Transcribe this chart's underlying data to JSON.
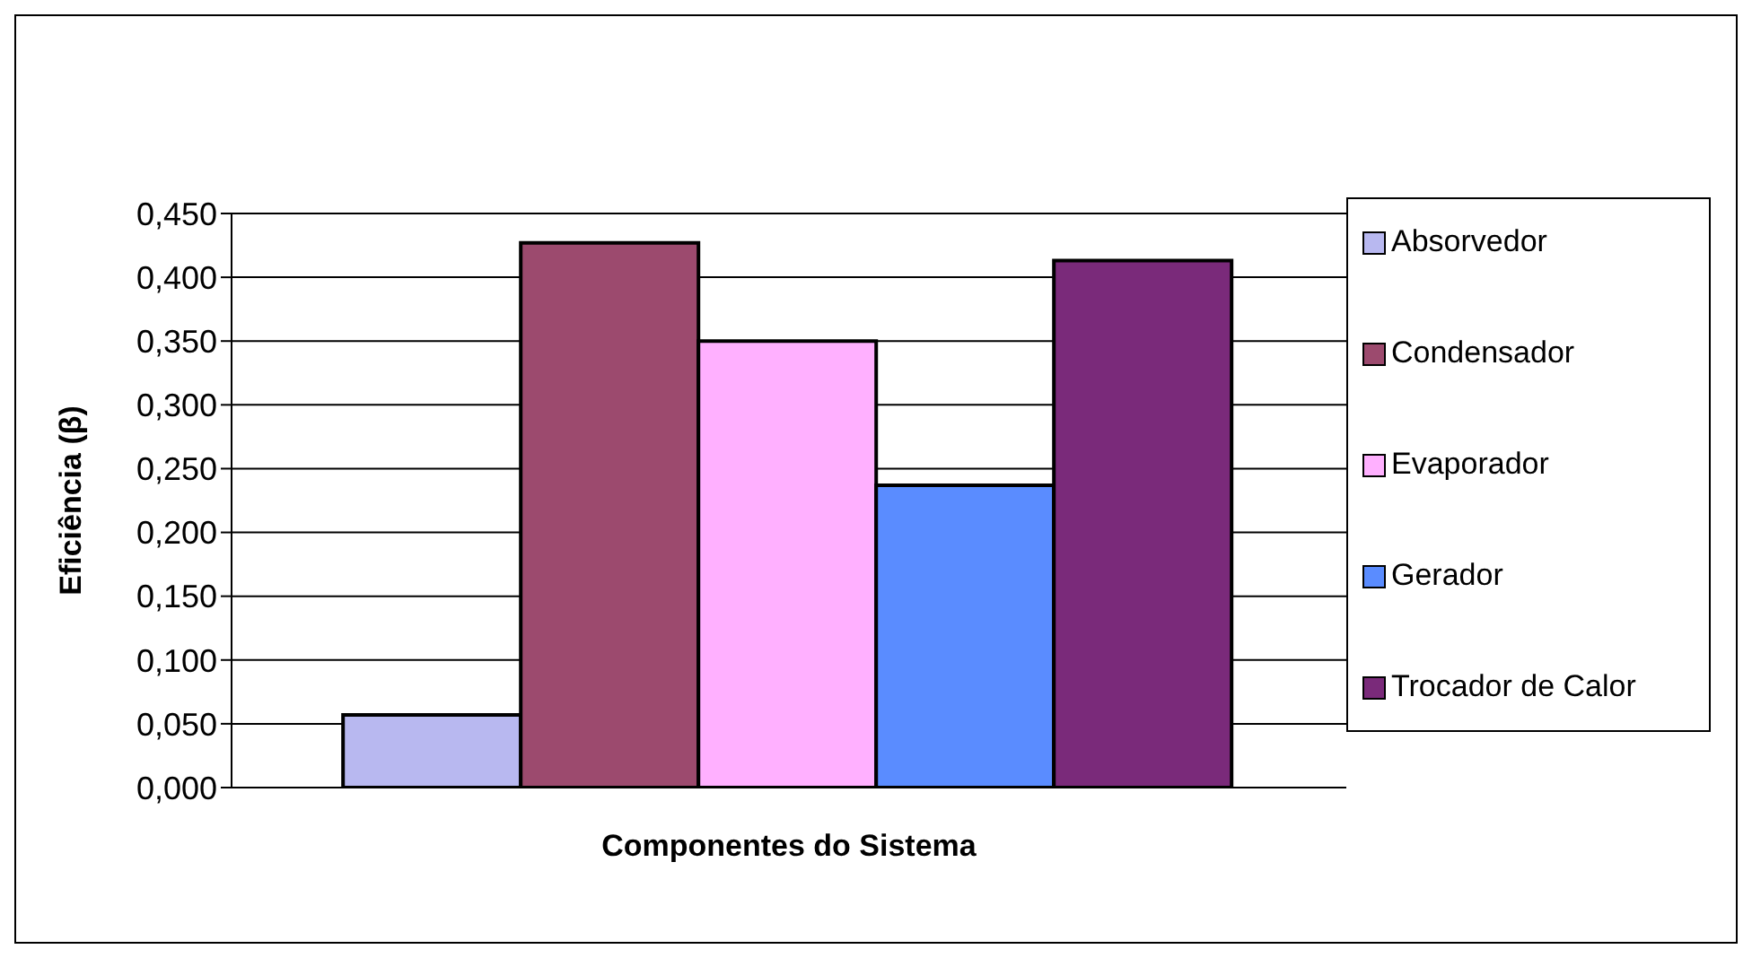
{
  "chart_data": {
    "type": "bar",
    "xlabel": "Componentes do Sistema",
    "ylabel": "Eficiência (β)",
    "categories": [
      null
    ],
    "series": [
      {
        "name": "Absorvedor",
        "color": "#b8b8f0",
        "values": [
          0.057
        ]
      },
      {
        "name": "Condensador",
        "color": "#9c4a6e",
        "values": [
          0.427
        ]
      },
      {
        "name": "Evaporador",
        "color": "#ffb0ff",
        "values": [
          0.35
        ]
      },
      {
        "name": "Gerador",
        "color": "#5a8cff",
        "values": [
          0.237
        ]
      },
      {
        "name": "Trocador de Calor",
        "color": "#7a2a7a",
        "values": [
          0.413
        ]
      }
    ],
    "ylim": [
      0,
      0.45
    ],
    "yticks": [
      {
        "value": 0,
        "label": "0,000"
      },
      {
        "value": 0.05,
        "label": "0,050"
      },
      {
        "value": 0.1,
        "label": "0,100"
      },
      {
        "value": 0.15,
        "label": "0,150"
      },
      {
        "value": 0.2,
        "label": "0,200"
      },
      {
        "value": 0.25,
        "label": "0,250"
      },
      {
        "value": 0.3,
        "label": "0,300"
      },
      {
        "value": 0.35,
        "label": "0,350"
      },
      {
        "value": 0.4,
        "label": "0,400"
      },
      {
        "value": 0.45,
        "label": "0,450"
      }
    ],
    "grid": "y",
    "legend": "right"
  }
}
